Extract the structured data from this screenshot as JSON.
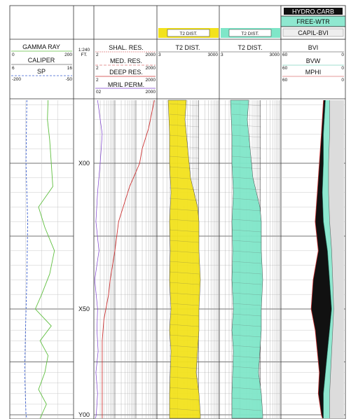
{
  "legend": {
    "hydro_carb": "HYDRO.CARB",
    "free_wtr": "FREE-WTR",
    "capil_bvi": "CAPIL-BVI",
    "t2_dist_yellow": "T2 DIST.",
    "t2_dist_cyan": "T2 DIST."
  },
  "scale": {
    "ratio": "1:240",
    "unit": "FT."
  },
  "tracks": {
    "track1": {
      "curves": [
        {
          "name": "GAMMA RAY",
          "min": "0",
          "max": "200",
          "color": "#5fbf3f"
        },
        {
          "name": "CALIPER",
          "min": "6",
          "max": "16",
          "color": "#222222"
        },
        {
          "name": "SP",
          "min": "-200",
          "max": "-50",
          "color": "#3a5fd0"
        }
      ]
    },
    "track3": {
      "curves": [
        {
          "name": "SHAL. RES.",
          "min": "2",
          "max": "2000",
          "color": "#cc3333"
        },
        {
          "name": "MED. RES.",
          "min": "2",
          "max": "2000",
          "color": "#cc3333"
        },
        {
          "name": "DEEP RES.",
          "min": "2",
          "max": "2000",
          "color": "#cc3333"
        },
        {
          "name": "MRIL PERM.",
          "min": "02",
          "max": "2000",
          "color": "#7a3ccc"
        }
      ]
    },
    "track4": {
      "name": "T2 DIST.",
      "min": "3",
      "max": "3000",
      "color": "#f2e21c"
    },
    "track5": {
      "name": "T2 DIST.",
      "min": "3",
      "max": "3000",
      "color": "#7fe6c8"
    },
    "track6": {
      "curves": [
        {
          "name": "BVI",
          "min": "60",
          "max": "0"
        },
        {
          "name": "BVW",
          "min": "60",
          "max": "0"
        },
        {
          "name": "MPHI",
          "min": "60",
          "max": "0"
        }
      ]
    }
  },
  "depth_labels": [
    "X00",
    "X50",
    "Y00"
  ],
  "colors": {
    "hydrocarbon": "#111111",
    "free_water": "#8fe8d0",
    "capil_bvi": "#dcdcdc",
    "gamma": "#5fbf3f",
    "sp": "#3a5fd0",
    "resistivity": "#cc3333",
    "perm": "#7a3ccc",
    "t2_yellow": "#f2e21c",
    "t2_cyan": "#7fe6c8"
  },
  "chart_data": {
    "type": "well-log",
    "depth_axis": {
      "labels": [
        "X00",
        "X50",
        "Y00"
      ],
      "values": [
        0,
        50,
        100
      ],
      "unit": "FT."
    },
    "series": [
      {
        "name": "GAMMA RAY",
        "depth": [
          -22,
          -15,
          -8,
          0,
          8,
          15,
          22,
          30,
          38,
          45,
          50,
          58,
          65,
          72,
          80,
          88,
          95,
          100,
          105
        ],
        "values": [
          120,
          118,
          125,
          130,
          135,
          90,
          110,
          140,
          125,
          100,
          80,
          130,
          95,
          120,
          110,
          90,
          115,
          100,
          95
        ]
      },
      {
        "name": "SP",
        "depth": [
          -22,
          0,
          20,
          40,
          60,
          80,
          100,
          105
        ],
        "values": [
          -160,
          -162,
          -158,
          -160,
          -163,
          -165,
          -162,
          -160
        ]
      },
      {
        "name": "DEEP RES.",
        "depth": [
          -22,
          -12,
          -5,
          0,
          3,
          8,
          20,
          30,
          40,
          45,
          55,
          65,
          80,
          100,
          105
        ],
        "values": [
          1500,
          800,
          400,
          300,
          200,
          100,
          30,
          20,
          12,
          10,
          6,
          5,
          5,
          5,
          5
        ]
      },
      {
        "name": "MRIL PERM.",
        "depth": [
          -22,
          -10,
          0,
          10,
          20,
          30,
          40,
          50,
          60,
          70,
          80,
          90,
          100,
          105
        ],
        "values": [
          3,
          5,
          4,
          3,
          2.5,
          3.5,
          2.2,
          3,
          2.8,
          3.2,
          2.5,
          3,
          2.6,
          2.4
        ]
      },
      {
        "name": "MPHI",
        "depth": [
          -22,
          -10,
          0,
          10,
          20,
          30,
          40,
          50,
          60,
          70,
          80,
          90,
          100,
          105
        ],
        "values": [
          20,
          22,
          24,
          26,
          28,
          25,
          30,
          32,
          28,
          26,
          24,
          25,
          22,
          21
        ]
      },
      {
        "name": "BVW",
        "depth": [
          -22,
          -10,
          0,
          10,
          20,
          30,
          40,
          50,
          60,
          70,
          80,
          90,
          100,
          105
        ],
        "values": [
          18,
          20,
          20,
          21,
          20,
          16,
          14,
          12,
          14,
          16,
          18,
          20,
          20,
          20
        ]
      },
      {
        "name": "BVI",
        "depth": [
          -22,
          -10,
          0,
          10,
          20,
          30,
          40,
          50,
          60,
          70,
          80,
          90,
          100,
          105
        ],
        "values": [
          14,
          14,
          15,
          15,
          14,
          12,
          11,
          10,
          11,
          12,
          13,
          14,
          14,
          14
        ]
      }
    ]
  }
}
